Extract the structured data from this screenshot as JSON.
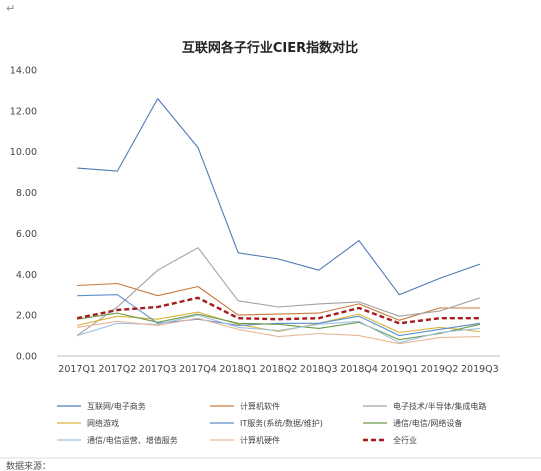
{
  "page": {
    "corner_mark": "↵",
    "footer_left": "数据来源：",
    "footer_right": ""
  },
  "chart_data": {
    "type": "line",
    "title": "互联网各子行业CIER指数对比",
    "xlabel": "",
    "ylabel": "",
    "ylim": [
      0,
      14
    ],
    "yticks": [
      "0.00",
      "2.00",
      "4.00",
      "6.00",
      "8.00",
      "10.00",
      "12.00",
      "14.00"
    ],
    "categories": [
      "2017Q1",
      "2017Q2",
      "2017Q3",
      "2017Q4",
      "2018Q1",
      "2018Q2",
      "2018Q3",
      "2018Q4",
      "2019Q1",
      "2019Q2",
      "2019Q3"
    ],
    "grid": false,
    "legend_position": "bottom",
    "series": [
      {
        "name": "互联网/电子商务",
        "color": "#4f7bb7",
        "dashed": false,
        "values": [
          9.2,
          9.05,
          12.6,
          10.2,
          5.05,
          4.75,
          4.2,
          5.65,
          3.0,
          3.8,
          4.5
        ]
      },
      {
        "name": "计算机软件",
        "color": "#c97a3c",
        "dashed": false,
        "values": [
          3.45,
          3.55,
          2.95,
          3.4,
          2.0,
          2.05,
          2.1,
          2.55,
          1.75,
          2.35,
          2.35
        ]
      },
      {
        "name": "电子技术/半导体/集成电路",
        "color": "#a3a3a3",
        "dashed": false,
        "values": [
          1.0,
          2.4,
          4.2,
          5.3,
          2.7,
          2.4,
          2.55,
          2.65,
          1.95,
          2.2,
          2.85
        ]
      },
      {
        "name": "网络游戏",
        "color": "#d9b33a",
        "dashed": false,
        "values": [
          1.5,
          1.95,
          1.8,
          2.15,
          1.55,
          1.2,
          1.6,
          2.05,
          1.15,
          1.4,
          1.2
        ]
      },
      {
        "name": "IT服务(系统/数据/维护)",
        "color": "#5b8fc9",
        "dashed": false,
        "values": [
          2.95,
          3.0,
          1.6,
          1.8,
          1.5,
          1.6,
          1.6,
          1.95,
          1.0,
          1.3,
          1.6
        ]
      },
      {
        "name": "通信/电信/网络设备",
        "color": "#6a9b4a",
        "dashed": false,
        "values": [
          1.8,
          2.1,
          1.65,
          2.05,
          1.6,
          1.55,
          1.35,
          1.65,
          0.8,
          1.1,
          1.55
        ]
      },
      {
        "name": "通信/电信运营、增值服务",
        "color": "#9fc0e0",
        "dashed": false,
        "values": [
          1.0,
          1.6,
          1.55,
          2.0,
          1.4,
          1.25,
          1.55,
          1.7,
          0.65,
          1.15,
          1.35
        ]
      },
      {
        "name": "计算机硬件",
        "color": "#e8b79a",
        "dashed": false,
        "values": [
          1.4,
          1.7,
          1.5,
          1.85,
          1.3,
          0.95,
          1.1,
          1.0,
          0.6,
          0.9,
          0.95
        ]
      },
      {
        "name": "全行业",
        "color": "#a61b1b",
        "dashed": true,
        "values": [
          1.85,
          2.25,
          2.4,
          2.85,
          1.85,
          1.8,
          1.85,
          2.35,
          1.6,
          1.85,
          1.85
        ]
      }
    ]
  }
}
